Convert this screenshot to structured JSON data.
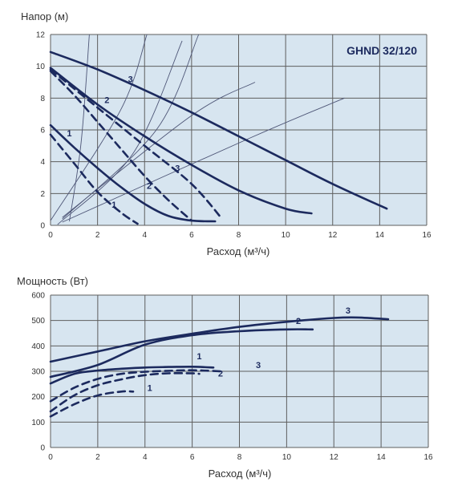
{
  "colors": {
    "background": "#ffffff",
    "plot_area": "#d7e5f0",
    "grid": "#5e5e5e",
    "curve": "#1c2a5e",
    "system": "#4e5677",
    "text": "#333333"
  },
  "chart_data": [
    {
      "type": "line",
      "title": "GHND 32/120",
      "xlabel": "Расход (м³/ч)",
      "ylabel": "Напор (м)",
      "xlim": [
        0,
        16
      ],
      "ylim": [
        0,
        12
      ],
      "x_ticks": [
        "0",
        "2",
        "4",
        "6",
        "8",
        "10",
        "12",
        "14",
        "16"
      ],
      "y_ticks": [
        "0",
        "2",
        "4",
        "6",
        "8",
        "10",
        "12"
      ],
      "grid": true,
      "series": [
        {
          "name": "3",
          "style": "solid",
          "points": [
            [
              0,
              10.9
            ],
            [
              2,
              9.8
            ],
            [
              4,
              8.5
            ],
            [
              6,
              7.1
            ],
            [
              8,
              5.6
            ],
            [
              10,
              4.1
            ],
            [
              12,
              2.6
            ],
            [
              14.3,
              1.05
            ]
          ]
        },
        {
          "name": "2",
          "style": "solid",
          "points": [
            [
              0,
              9.9
            ],
            [
              2,
              7.6
            ],
            [
              4,
              5.6
            ],
            [
              6,
              3.8
            ],
            [
              8,
              2.2
            ],
            [
              10,
              1.05
            ],
            [
              11.1,
              0.75
            ]
          ]
        },
        {
          "name": "1",
          "style": "solid",
          "points": [
            [
              0,
              6.3
            ],
            [
              1,
              4.9
            ],
            [
              2,
              3.6
            ],
            [
              3,
              2.4
            ],
            [
              4,
              1.35
            ],
            [
              5,
              0.6
            ],
            [
              6,
              0.3
            ],
            [
              7,
              0.25
            ]
          ]
        },
        {
          "name": "3",
          "style": "dashed",
          "points": [
            [
              0,
              9.8
            ],
            [
              2,
              7.4
            ],
            [
              4,
              5.0
            ],
            [
              6,
              2.6
            ],
            [
              7.3,
              0.4
            ]
          ]
        },
        {
          "name": "2",
          "style": "dashed",
          "points": [
            [
              0,
              9.7
            ],
            [
              1,
              8.2
            ],
            [
              2,
              6.5
            ],
            [
              3,
              4.8
            ],
            [
              4,
              3.1
            ],
            [
              5,
              1.6
            ],
            [
              6,
              0.3
            ]
          ]
        },
        {
          "name": "1",
          "style": "dashed",
          "points": [
            [
              0,
              5.7
            ],
            [
              1,
              3.9
            ],
            [
              2,
              2.1
            ],
            [
              3,
              0.8
            ],
            [
              3.7,
              0.1
            ]
          ]
        }
      ],
      "system_curves": [
        {
          "points": [
            [
              0.3,
              0.05
            ],
            [
              3.5,
              4.5
            ],
            [
              5.6,
              11.6
            ]
          ]
        },
        {
          "points": [
            [
              0.5,
              0.4
            ],
            [
              4.5,
              6.0
            ],
            [
              6.3,
              12
            ]
          ]
        },
        {
          "points": [
            [
              0.5,
              0.5
            ],
            [
              6.0,
              6.9
            ],
            [
              8.7,
              9.0
            ]
          ]
        },
        {
          "points": [
            [
              0.5,
              0.2
            ],
            [
              8.5,
              5.5
            ],
            [
              12.5,
              8.0
            ]
          ]
        },
        {
          "points": [
            [
              0.8,
              0.25
            ],
            [
              1.3,
              5.2
            ],
            [
              1.65,
              12
            ]
          ]
        },
        {
          "points": [
            [
              0,
              0.3
            ],
            [
              3,
              7.3
            ],
            [
              4.1,
              12
            ]
          ]
        }
      ],
      "annotations": [
        {
          "text": "3",
          "x": 3.4,
          "y": 9.0
        },
        {
          "text": "2",
          "x": 2.4,
          "y": 7.7
        },
        {
          "text": "1",
          "x": 0.8,
          "y": 5.6
        },
        {
          "text": "3",
          "x": 5.4,
          "y": 3.4
        },
        {
          "text": "2",
          "x": 4.2,
          "y": 2.3
        },
        {
          "text": "1",
          "x": 2.7,
          "y": 1.1
        }
      ]
    },
    {
      "type": "line",
      "title": "",
      "xlabel": "Расход (м³/ч)",
      "ylabel": "Мощность (Вт)",
      "xlim": [
        0,
        16
      ],
      "ylim": [
        0,
        600
      ],
      "x_ticks": [
        "0",
        "2",
        "4",
        "6",
        "8",
        "10",
        "12",
        "14",
        "16"
      ],
      "y_ticks": [
        "0",
        "100",
        "200",
        "300",
        "400",
        "500",
        "600"
      ],
      "grid": true,
      "series": [
        {
          "name": "3",
          "style": "solid",
          "points": [
            [
              0,
              338
            ],
            [
              2,
              378
            ],
            [
              4,
              418
            ],
            [
              6,
              448
            ],
            [
              8,
              475
            ],
            [
              10,
              495
            ],
            [
              12,
              510
            ],
            [
              13,
              512
            ],
            [
              14.3,
              505
            ]
          ]
        },
        {
          "name": "2",
          "style": "solid",
          "points": [
            [
              0,
              278
            ],
            [
              2,
              325
            ],
            [
              4,
              405
            ],
            [
              6,
              442
            ],
            [
              8,
              458
            ],
            [
              10,
              465
            ],
            [
              11.1,
              465
            ]
          ]
        },
        {
          "name": "1",
          "style": "solid",
          "points": [
            [
              0,
              252
            ],
            [
              1,
              290
            ],
            [
              2,
              303
            ],
            [
              3,
              310
            ],
            [
              4,
              315
            ],
            [
              5,
              317
            ],
            [
              6,
              318
            ],
            [
              6.9,
              315
            ]
          ]
        },
        {
          "name": "3",
          "style": "dashed",
          "points": [
            [
              0,
              182
            ],
            [
              1,
              235
            ],
            [
              2,
              270
            ],
            [
              3,
              290
            ],
            [
              4,
              298
            ],
            [
              5,
              302
            ],
            [
              6,
              304
            ],
            [
              7.2,
              300
            ]
          ]
        },
        {
          "name": "2",
          "style": "dashed",
          "points": [
            [
              0,
              142
            ],
            [
              1,
              205
            ],
            [
              2,
              245
            ],
            [
              3,
              268
            ],
            [
              4,
              285
            ],
            [
              5,
              292
            ],
            [
              6,
              292
            ],
            [
              6.3,
              290
            ]
          ]
        },
        {
          "name": "1",
          "style": "dashed",
          "points": [
            [
              0,
              122
            ],
            [
              1,
              170
            ],
            [
              2,
              205
            ],
            [
              3,
              220
            ],
            [
              3.5,
              220
            ]
          ]
        }
      ],
      "annotations": [
        {
          "text": "3",
          "x": 12.6,
          "y": 528
        },
        {
          "text": "2",
          "x": 10.5,
          "y": 487
        },
        {
          "text": "1",
          "x": 6.3,
          "y": 347
        },
        {
          "text": "3",
          "x": 8.8,
          "y": 312
        },
        {
          "text": "2",
          "x": 7.2,
          "y": 280
        },
        {
          "text": "1",
          "x": 4.2,
          "y": 222
        }
      ]
    }
  ]
}
